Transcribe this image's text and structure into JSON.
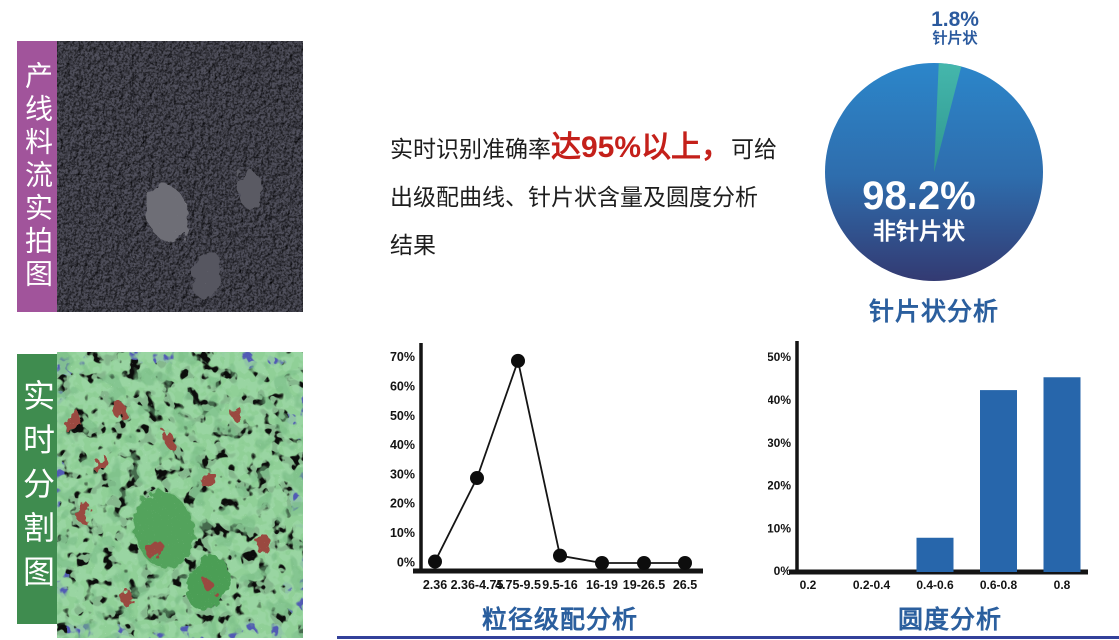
{
  "slide": {
    "photo_panels": [
      {
        "label": "产线料流实拍图",
        "strip_color": "#a1549b",
        "content": "dark crushed-stone production line photo"
      },
      {
        "label": "实时分割图",
        "strip_color": "#3f8c4f",
        "content": "real-time segmentation image with green particles, red particles and blue background patches"
      }
    ],
    "description": {
      "line1_prefix": "实时识别准确率",
      "line1_highlight": "达95%以上，",
      "line1_suffix": "可给",
      "line2": "出级配曲线、针片状含量及圆度分析",
      "line3": "结果",
      "highlight_color": "#c4201a",
      "text_color": "#1d1d1d"
    },
    "footer_rule_color": "#32409a"
  },
  "chart_data": [
    {
      "type": "pie",
      "title": "针片状分析",
      "slices": [
        {
          "label": "针片状",
          "value": 1.8
        },
        {
          "label": "非针片状",
          "value": 98.2
        }
      ],
      "callout": {
        "percent": "1.8%",
        "label": "针片状"
      },
      "center_label": {
        "percent": "98.2%",
        "label": "非针片状"
      },
      "colors": {
        "main_top": "#2c86ca",
        "main_mid": "#2e6dad",
        "main_bottom": "#333a72",
        "sliver_top": "#45b7ac",
        "sliver_bottom": "#2e968f",
        "label_blue": "#2b5a9e",
        "title_blue": "#2b5f9e"
      },
      "layout": {
        "start_deg": 2.5,
        "sweep_deg": 12,
        "legend": "none"
      }
    },
    {
      "type": "line",
      "title": "粒径级配分析",
      "categories": [
        "2.36",
        "2.36-4.75",
        "4.75-9.5",
        "9.5-16",
        "16-19",
        "19-26.5",
        "26.5"
      ],
      "values": [
        0.5,
        29,
        69,
        2.5,
        0,
        0,
        0
      ],
      "xlabel": "",
      "ylabel": "",
      "ylim": [
        0,
        70
      ],
      "ytick_step": 10,
      "ytick_suffix": "%",
      "line_color": "#151515",
      "marker": "filled-circle",
      "grid": "off",
      "legend": "none"
    },
    {
      "type": "bar",
      "title": "圆度分析",
      "categories": [
        "0.2",
        "0.2-0.4",
        "0.4-0.6",
        "0.6-0.8",
        "0.8"
      ],
      "values": [
        0,
        0,
        8,
        42.5,
        45.5
      ],
      "xlabel": "",
      "ylabel": "",
      "ylim": [
        0,
        50
      ],
      "ytick_step": 10,
      "ytick_suffix": "%",
      "bar_color": "#2766ab",
      "grid": "off",
      "legend": "none"
    }
  ]
}
